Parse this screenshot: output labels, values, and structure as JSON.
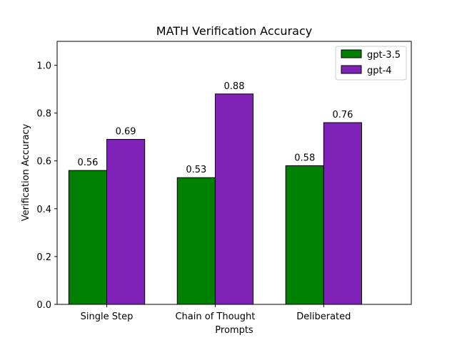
{
  "chart_data": {
    "type": "bar",
    "title": "MATH Verification Accuracy",
    "xlabel": "Prompts",
    "ylabel": "Verification Accuracy",
    "categories": [
      "Single Step",
      "Chain of Thought",
      "Deliberated"
    ],
    "series": [
      {
        "name": "gpt-3.5",
        "values": [
          0.56,
          0.53,
          0.58
        ],
        "color": "#008000"
      },
      {
        "name": "gpt-4",
        "values": [
          0.69,
          0.88,
          0.76
        ],
        "color": "#7f22b8"
      }
    ],
    "data_labels": [
      [
        "0.56",
        "0.53",
        "0.58"
      ],
      [
        "0.69",
        "0.88",
        "0.76"
      ]
    ],
    "ylim": [
      0,
      1.1
    ],
    "yticks": [
      "0.0",
      "0.2",
      "0.4",
      "0.6",
      "0.8",
      "1.0"
    ],
    "ytick_values": [
      0.0,
      0.2,
      0.4,
      0.6,
      0.8,
      1.0
    ],
    "grid": false,
    "legend_position": "top-right",
    "bar_edge_color": "#000000"
  }
}
